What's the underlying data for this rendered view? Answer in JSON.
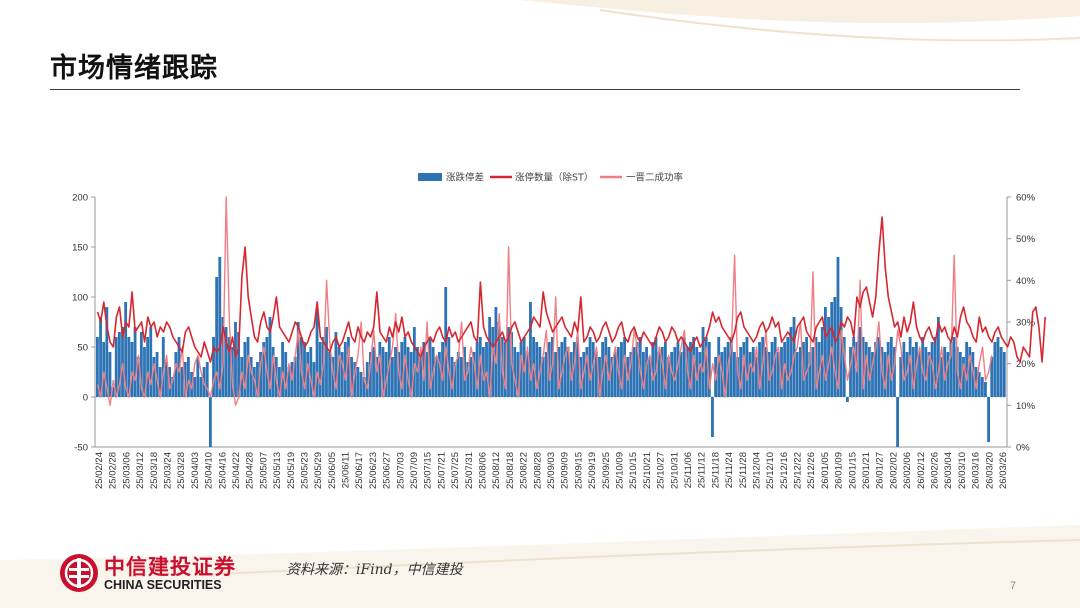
{
  "slide": {
    "title": "市场情绪跟踪",
    "source": "资料来源：iFind，中信建投",
    "page_number": "7",
    "brand_cn": "中信建投证券",
    "brand_en": "CHINA SECURITIES",
    "accent_color": "#c8102e"
  },
  "chart_data": {
    "type": "bar",
    "legend": {
      "position": "top-center",
      "items": [
        "涨跌停差",
        "涨停数量（除ST）",
        "一晋二成功率"
      ]
    },
    "series_colors": {
      "bar": "#2e74b5",
      "line_main": "#d6262f",
      "line_rate": "#ef7f86"
    },
    "y_left": {
      "min": -50,
      "max": 200,
      "ticks": [
        "200",
        "150",
        "100",
        "50",
        "0",
        "-50"
      ]
    },
    "y_right": {
      "min": 0,
      "max": 60,
      "ticks": [
        "60%",
        "50%",
        "40%",
        "30%",
        "20%",
        "10%",
        "0%"
      ]
    },
    "x_tick_labels": [
      "25/02/24",
      "25/02/28",
      "25/03/06",
      "25/03/12",
      "25/03/18",
      "25/03/24",
      "25/03/28",
      "25/04/03",
      "25/04/10",
      "25/04/16",
      "25/04/22",
      "25/04/28",
      "25/05/07",
      "25/05/13",
      "25/05/19",
      "25/05/23",
      "25/05/29",
      "25/06/05",
      "25/06/11",
      "25/06/17",
      "25/06/23",
      "25/06/27",
      "25/07/03",
      "25/07/09",
      "25/07/15",
      "25/07/21",
      "25/07/25",
      "25/07/31",
      "25/08/06",
      "25/08/12",
      "25/08/18",
      "25/08/22",
      "25/08/28",
      "25/09/03",
      "25/09/09",
      "25/09/15",
      "25/09/19",
      "25/09/25",
      "25/10/09",
      "25/10/15",
      "25/10/21",
      "25/10/27",
      "25/10/31",
      "25/11/06",
      "25/11/12",
      "25/11/18",
      "25/11/24",
      "25/11/28",
      "25/12/04",
      "25/12/10",
      "25/12/16",
      "25/12/22",
      "25/12/26",
      "26/01/05",
      "26/01/09",
      "26/01/15",
      "26/01/21",
      "26/01/27",
      "26/02/02",
      "26/02/06",
      "26/02/12",
      "26/02/26",
      "26/03/04",
      "26/03/10",
      "26/03/16",
      "26/03/20",
      "26/03/26"
    ],
    "diff": [
      60,
      80,
      55,
      90,
      45,
      10,
      60,
      65,
      70,
      95,
      60,
      55,
      70,
      40,
      65,
      50,
      60,
      70,
      40,
      45,
      30,
      60,
      35,
      30,
      20,
      45,
      60,
      30,
      35,
      40,
      25,
      20,
      40,
      20,
      30,
      35,
      -50,
      60,
      120,
      140,
      80,
      70,
      60,
      50,
      75,
      65,
      40,
      55,
      60,
      40,
      30,
      35,
      45,
      55,
      60,
      80,
      50,
      40,
      30,
      55,
      45,
      30,
      35,
      40,
      75,
      60,
      55,
      45,
      50,
      35,
      90,
      55,
      60,
      70,
      45,
      40,
      65,
      50,
      45,
      55,
      60,
      40,
      35,
      30,
      25,
      20,
      35,
      45,
      50,
      40,
      55,
      50,
      45,
      60,
      40,
      50,
      45,
      55,
      60,
      50,
      45,
      70,
      50,
      40,
      55,
      45,
      60,
      50,
      40,
      45,
      55,
      110,
      60,
      40,
      35,
      45,
      40,
      50,
      35,
      40,
      45,
      55,
      60,
      50,
      55,
      80,
      70,
      90,
      75,
      60,
      55,
      70,
      65,
      50,
      45,
      55,
      60,
      45,
      95,
      60,
      55,
      50,
      40,
      45,
      55,
      60,
      45,
      50,
      55,
      60,
      50,
      45,
      55,
      60,
      40,
      45,
      50,
      60,
      55,
      45,
      40,
      55,
      60,
      50,
      40,
      45,
      50,
      55,
      60,
      40,
      45,
      50,
      55,
      60,
      45,
      50,
      40,
      55,
      60,
      45,
      50,
      55,
      40,
      45,
      50,
      55,
      45,
      60,
      50,
      55,
      60,
      50,
      45,
      70,
      60,
      55,
      -40,
      40,
      60,
      45,
      50,
      55,
      60,
      45,
      40,
      50,
      55,
      60,
      45,
      50,
      40,
      55,
      60,
      50,
      45,
      55,
      60,
      45,
      50,
      55,
      60,
      70,
      80,
      45,
      50,
      55,
      60,
      45,
      50,
      60,
      55,
      70,
      90,
      80,
      95,
      100,
      140,
      90,
      60,
      -5,
      50,
      60,
      55,
      70,
      60,
      55,
      50,
      45,
      55,
      60,
      50,
      45,
      55,
      60,
      50,
      -50,
      40,
      55,
      45,
      60,
      50,
      55,
      45,
      60,
      50,
      45,
      55,
      60,
      80,
      40,
      50,
      45,
      55,
      60,
      50,
      45,
      40,
      55,
      50,
      45,
      30,
      25,
      20,
      15,
      -45,
      40,
      55,
      60,
      50,
      45
    ],
    "zt_count": [
      85,
      75,
      95,
      70,
      55,
      50,
      80,
      90,
      60,
      75,
      70,
      105,
      65,
      70,
      75,
      55,
      80,
      70,
      75,
      60,
      70,
      65,
      75,
      70,
      60,
      55,
      50,
      45,
      65,
      70,
      60,
      50,
      45,
      40,
      55,
      45,
      35,
      50,
      45,
      50,
      70,
      55,
      45,
      60,
      40,
      50,
      120,
      150,
      100,
      80,
      60,
      55,
      75,
      85,
      70,
      65,
      80,
      100,
      70,
      65,
      60,
      55,
      65,
      75,
      70,
      60,
      50,
      55,
      65,
      70,
      95,
      60,
      55,
      50,
      45,
      55,
      60,
      50,
      55,
      65,
      75,
      60,
      55,
      70,
      60,
      55,
      65,
      60,
      70,
      105,
      65,
      60,
      55,
      70,
      60,
      75,
      65,
      80,
      60,
      65,
      55,
      50,
      45,
      40,
      50,
      55,
      60,
      55,
      65,
      70,
      60,
      55,
      70,
      60,
      65,
      55,
      60,
      65,
      70,
      75,
      60,
      55,
      115,
      70,
      60,
      55,
      50,
      55,
      60,
      65,
      55,
      60,
      70,
      75,
      65,
      55,
      60,
      65,
      70,
      80,
      75,
      70,
      105,
      85,
      75,
      65,
      70,
      75,
      80,
      70,
      65,
      60,
      75,
      65,
      100,
      55,
      60,
      70,
      65,
      55,
      60,
      70,
      75,
      65,
      55,
      60,
      70,
      75,
      60,
      55,
      65,
      70,
      60,
      55,
      65,
      60,
      55,
      50,
      60,
      70,
      65,
      55,
      60,
      70,
      65,
      55,
      60,
      55,
      50,
      45,
      55,
      60,
      50,
      55,
      60,
      70,
      85,
      75,
      80,
      70,
      65,
      60,
      55,
      65,
      80,
      85,
      70,
      65,
      60,
      55,
      60,
      70,
      75,
      65,
      70,
      80,
      70,
      75,
      55,
      60,
      65,
      60,
      55,
      70,
      75,
      80,
      65,
      60,
      55,
      70,
      75,
      80,
      60,
      65,
      70,
      55,
      60,
      75,
      70,
      80,
      75,
      60,
      100,
      90,
      105,
      110,
      95,
      80,
      100,
      145,
      180,
      130,
      100,
      85,
      70,
      75,
      60,
      80,
      65,
      75,
      95,
      70,
      60,
      55,
      65,
      70,
      60,
      55,
      75,
      65,
      70,
      60,
      55,
      70,
      60,
      80,
      90,
      75,
      70,
      60,
      55,
      80,
      65,
      70,
      60,
      55,
      65,
      70,
      60,
      55,
      50,
      60,
      55,
      40,
      35,
      50,
      45,
      40,
      85,
      90,
      70,
      35,
      80
    ],
    "one_to_two_rate": [
      15,
      12,
      18,
      14,
      10,
      16,
      12,
      15,
      20,
      14,
      12,
      18,
      16,
      22,
      14,
      12,
      18,
      15,
      20,
      16,
      12,
      18,
      22,
      14,
      16,
      20,
      18,
      24,
      12,
      16,
      14,
      20,
      22,
      18,
      15,
      14,
      12,
      16,
      18,
      14,
      20,
      60,
      30,
      15,
      10,
      12,
      18,
      14,
      22,
      18,
      16,
      12,
      20,
      24,
      18,
      14,
      22,
      16,
      12,
      18,
      14,
      20,
      16,
      22,
      28,
      18,
      14,
      20,
      16,
      12,
      18,
      15,
      20,
      40,
      25,
      18,
      14,
      22,
      20,
      16,
      24,
      12,
      18,
      22,
      30,
      16,
      14,
      20,
      28,
      18,
      22,
      12,
      16,
      20,
      24,
      32,
      18,
      14,
      22,
      16,
      12,
      20,
      18,
      24,
      16,
      30,
      14,
      18,
      22,
      20,
      16,
      24,
      18,
      14,
      20,
      22,
      30,
      16,
      18,
      24,
      20,
      14,
      22,
      16,
      18,
      12,
      24,
      20,
      32,
      18,
      14,
      48,
      20,
      16,
      12,
      22,
      18,
      24,
      16,
      20,
      14,
      18,
      22,
      28,
      16,
      20,
      36,
      14,
      18,
      22,
      24,
      16,
      20,
      28,
      14,
      18,
      22,
      16,
      20,
      24,
      12,
      18,
      22,
      16,
      20,
      24,
      18,
      14,
      22,
      16,
      20,
      28,
      24,
      18,
      14,
      20,
      22,
      16,
      18,
      24,
      20,
      14,
      22,
      18,
      16,
      20,
      24,
      28,
      18,
      14,
      22,
      16,
      20,
      18,
      24,
      14,
      20,
      16,
      22,
      18,
      12,
      20,
      24,
      46,
      18,
      14,
      22,
      16,
      20,
      18,
      24,
      14,
      20,
      28,
      16,
      18,
      22,
      24,
      14,
      20,
      16,
      18,
      22,
      24,
      30,
      16,
      18,
      20,
      42,
      14,
      18,
      22,
      16,
      20,
      24,
      18,
      14,
      28,
      22,
      16,
      20,
      24,
      18,
      40,
      14,
      22,
      16,
      20,
      24,
      30,
      18,
      14,
      22,
      16,
      20,
      28,
      24,
      16,
      18,
      22,
      14,
      20,
      24,
      18,
      16,
      22,
      20,
      14,
      18,
      24,
      16,
      20,
      22,
      46,
      18,
      14,
      20,
      16,
      22,
      18,
      14,
      20,
      24,
      16,
      18,
      22
    ]
  }
}
